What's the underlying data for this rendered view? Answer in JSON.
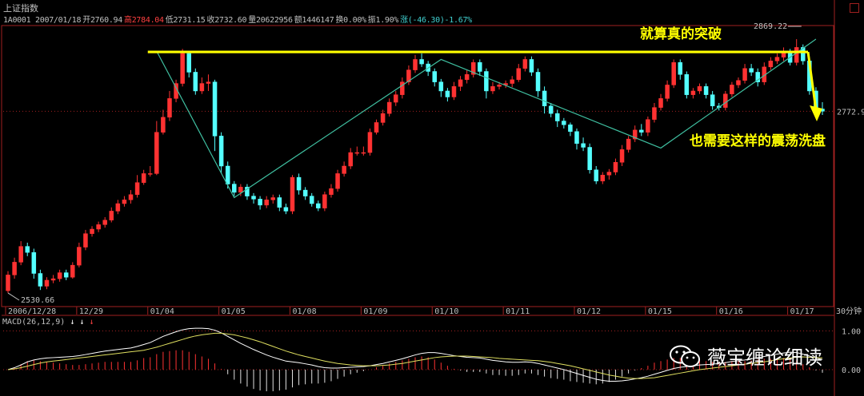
{
  "header": {
    "title": "上证指数",
    "quote": [
      {
        "text": "1A0001 2007/01/18",
        "color": "w"
      },
      {
        "text": "开2760.94",
        "color": "w"
      },
      {
        "text": "高2784.04",
        "color": "r"
      },
      {
        "text": "低2731.15",
        "color": "w"
      },
      {
        "text": "收2732.60",
        "color": "w"
      },
      {
        "text": "量20622956",
        "color": "w"
      },
      {
        "text": "额1446147",
        "color": "w"
      },
      {
        "text": "换0.00%",
        "color": "w"
      },
      {
        "text": "振1.90%",
        "color": "w"
      },
      {
        "text": "涨(-46.30)-1.67%",
        "color": "g"
      }
    ]
  },
  "annotations": {
    "breakout": "就算真的突破",
    "shakeout": "也需要这样的震荡洗盘"
  },
  "macd": {
    "label": "MACD(26,12,9)"
  },
  "watermark": {
    "text": "薇宝缠论细读"
  },
  "chart_data": {
    "type": "candlestick",
    "price": {
      "ylim": [
        2515,
        2885
      ],
      "high_label": "2869.22",
      "low_label": "2530.66",
      "last_label": "2772.9",
      "resistance_level": 2852,
      "period_label": "30分钟"
    },
    "x_labels": [
      "2006/12/28",
      "12/29",
      "01/04",
      "01/05",
      "01/08",
      "01/09",
      "01/10",
      "01/11",
      "01/12",
      "01/15",
      "01/16",
      "01/17"
    ],
    "x_label_index": [
      0,
      11,
      22,
      33,
      44,
      55,
      66,
      77,
      88,
      99,
      110,
      121
    ],
    "candles": [
      [
        2534,
        2555,
        2531,
        2560
      ],
      [
        2555,
        2572,
        2550,
        2578
      ],
      [
        2572,
        2593,
        2568,
        2600
      ],
      [
        2593,
        2585,
        2580,
        2598
      ],
      [
        2585,
        2557,
        2550,
        2590
      ],
      [
        2557,
        2540,
        2535,
        2562
      ],
      [
        2540,
        2548,
        2536,
        2552
      ],
      [
        2548,
        2550,
        2544,
        2555
      ],
      [
        2550,
        2558,
        2546,
        2562
      ],
      [
        2558,
        2552,
        2548,
        2562
      ],
      [
        2552,
        2568,
        2550,
        2572
      ],
      [
        2568,
        2592,
        2565,
        2598
      ],
      [
        2592,
        2610,
        2588,
        2615
      ],
      [
        2610,
        2616,
        2606,
        2620
      ],
      [
        2616,
        2622,
        2612,
        2626
      ],
      [
        2622,
        2628,
        2618,
        2632
      ],
      [
        2628,
        2640,
        2625,
        2645
      ],
      [
        2640,
        2650,
        2636,
        2655
      ],
      [
        2650,
        2655,
        2646,
        2660
      ],
      [
        2655,
        2662,
        2650,
        2668
      ],
      [
        2662,
        2678,
        2658,
        2688
      ],
      [
        2678,
        2690,
        2675,
        2695
      ],
      [
        2690,
        2690,
        2686,
        2700
      ],
      [
        2690,
        2745,
        2688,
        2760
      ],
      [
        2745,
        2765,
        2742,
        2775
      ],
      [
        2765,
        2790,
        2760,
        2800
      ],
      [
        2790,
        2810,
        2785,
        2815
      ],
      [
        2810,
        2850,
        2806,
        2856
      ],
      [
        2850,
        2825,
        2818,
        2852
      ],
      [
        2825,
        2800,
        2795,
        2830
      ],
      [
        2800,
        2810,
        2796,
        2818
      ],
      [
        2810,
        2812,
        2800,
        2822
      ],
      [
        2812,
        2740,
        2720,
        2815
      ],
      [
        2740,
        2700,
        2690,
        2745
      ],
      [
        2700,
        2676,
        2670,
        2706
      ],
      [
        2676,
        2665,
        2660,
        2680
      ],
      [
        2665,
        2672,
        2660,
        2676
      ],
      [
        2672,
        2660,
        2655,
        2676
      ],
      [
        2660,
        2656,
        2650,
        2664
      ],
      [
        2656,
        2648,
        2642,
        2660
      ],
      [
        2648,
        2655,
        2644,
        2660
      ],
      [
        2655,
        2658,
        2650,
        2662
      ],
      [
        2658,
        2645,
        2640,
        2662
      ],
      [
        2645,
        2640,
        2636,
        2650
      ],
      [
        2640,
        2685,
        2636,
        2688
      ],
      [
        2685,
        2668,
        2662,
        2690
      ],
      [
        2668,
        2660,
        2655,
        2672
      ],
      [
        2660,
        2650,
        2646,
        2664
      ],
      [
        2650,
        2644,
        2640,
        2654
      ],
      [
        2644,
        2662,
        2640,
        2666
      ],
      [
        2662,
        2670,
        2658,
        2676
      ],
      [
        2670,
        2690,
        2666,
        2695
      ],
      [
        2690,
        2700,
        2686,
        2706
      ],
      [
        2700,
        2718,
        2696,
        2724
      ],
      [
        2718,
        2718,
        2714,
        2726
      ],
      [
        2718,
        2718,
        2714,
        2726
      ],
      [
        2718,
        2745,
        2714,
        2750
      ],
      [
        2745,
        2758,
        2742,
        2762
      ],
      [
        2758,
        2770,
        2754,
        2775
      ],
      [
        2770,
        2785,
        2766,
        2790
      ],
      [
        2785,
        2795,
        2780,
        2800
      ],
      [
        2795,
        2812,
        2790,
        2818
      ],
      [
        2812,
        2828,
        2808,
        2834
      ],
      [
        2828,
        2842,
        2824,
        2848
      ],
      [
        2842,
        2836,
        2832,
        2850
      ],
      [
        2836,
        2826,
        2820,
        2840
      ],
      [
        2826,
        2812,
        2806,
        2830
      ],
      [
        2812,
        2800,
        2792,
        2816
      ],
      [
        2800,
        2792,
        2786,
        2804
      ],
      [
        2792,
        2806,
        2788,
        2812
      ],
      [
        2806,
        2815,
        2800,
        2820
      ],
      [
        2815,
        2822,
        2810,
        2828
      ],
      [
        2822,
        2838,
        2818,
        2842
      ],
      [
        2838,
        2826,
        2820,
        2842
      ],
      [
        2826,
        2800,
        2790,
        2830
      ],
      [
        2800,
        2806,
        2796,
        2812
      ],
      [
        2806,
        2808,
        2802,
        2812
      ],
      [
        2808,
        2810,
        2804,
        2814
      ],
      [
        2810,
        2815,
        2805,
        2820
      ],
      [
        2815,
        2830,
        2812,
        2836
      ],
      [
        2830,
        2842,
        2826,
        2846
      ],
      [
        2842,
        2825,
        2820,
        2846
      ],
      [
        2825,
        2800,
        2792,
        2830
      ],
      [
        2800,
        2780,
        2770,
        2806
      ],
      [
        2780,
        2770,
        2765,
        2784
      ],
      [
        2770,
        2760,
        2752,
        2775
      ],
      [
        2760,
        2755,
        2750,
        2764
      ],
      [
        2755,
        2746,
        2740,
        2758
      ],
      [
        2746,
        2730,
        2722,
        2750
      ],
      [
        2730,
        2725,
        2720,
        2738
      ],
      [
        2725,
        2695,
        2690,
        2730
      ],
      [
        2695,
        2680,
        2676,
        2700
      ],
      [
        2680,
        2688,
        2676,
        2692
      ],
      [
        2688,
        2692,
        2682,
        2696
      ],
      [
        2692,
        2705,
        2688,
        2710
      ],
      [
        2705,
        2722,
        2700,
        2728
      ],
      [
        2722,
        2736,
        2718,
        2740
      ],
      [
        2736,
        2748,
        2732,
        2754
      ],
      [
        2748,
        2745,
        2740,
        2756
      ],
      [
        2745,
        2762,
        2740,
        2766
      ],
      [
        2762,
        2778,
        2758,
        2784
      ],
      [
        2778,
        2790,
        2774,
        2796
      ],
      [
        2790,
        2808,
        2786,
        2814
      ],
      [
        2808,
        2838,
        2804,
        2842
      ],
      [
        2838,
        2822,
        2815,
        2842
      ],
      [
        2822,
        2795,
        2790,
        2826
      ],
      [
        2795,
        2800,
        2790,
        2804
      ],
      [
        2800,
        2806,
        2796,
        2810
      ],
      [
        2806,
        2795,
        2790,
        2810
      ],
      [
        2795,
        2780,
        2775,
        2800
      ],
      [
        2780,
        2778,
        2774,
        2784
      ],
      [
        2778,
        2796,
        2774,
        2800
      ],
      [
        2796,
        2808,
        2792,
        2812
      ],
      [
        2808,
        2814,
        2804,
        2818
      ],
      [
        2814,
        2830,
        2810,
        2836
      ],
      [
        2830,
        2825,
        2820,
        2836
      ],
      [
        2825,
        2812,
        2806,
        2830
      ],
      [
        2812,
        2832,
        2808,
        2838
      ],
      [
        2832,
        2840,
        2828,
        2845
      ],
      [
        2840,
        2845,
        2836,
        2850
      ],
      [
        2845,
        2852,
        2840,
        2858
      ],
      [
        2852,
        2838,
        2834,
        2856
      ],
      [
        2838,
        2858,
        2834,
        2869
      ],
      [
        2858,
        2840,
        2835,
        2862
      ],
      [
        2840,
        2800,
        2795,
        2845
      ],
      [
        2800,
        2776,
        2770,
        2805
      ],
      [
        2776,
        2773,
        2768,
        2785
      ]
    ],
    "zigzag": [
      [
        23,
        2853
      ],
      [
        35,
        2658
      ],
      [
        67,
        2842
      ],
      [
        101,
        2724
      ],
      [
        125,
        2869
      ]
    ],
    "macd_ylim": [
      -0.6,
      1.3
    ],
    "macd_ticks": [
      "1.00",
      "0.00"
    ],
    "dif": [
      0.0,
      0.05,
      0.12,
      0.2,
      0.25,
      0.28,
      0.3,
      0.31,
      0.32,
      0.33,
      0.34,
      0.36,
      0.39,
      0.42,
      0.45,
      0.48,
      0.5,
      0.52,
      0.54,
      0.56,
      0.6,
      0.65,
      0.7,
      0.78,
      0.86,
      0.92,
      0.98,
      1.03,
      1.06,
      1.07,
      1.07,
      1.06,
      1.02,
      0.95,
      0.86,
      0.77,
      0.68,
      0.6,
      0.52,
      0.45,
      0.38,
      0.32,
      0.27,
      0.22,
      0.2,
      0.18,
      0.15,
      0.12,
      0.08,
      0.05,
      0.04,
      0.04,
      0.05,
      0.06,
      0.07,
      0.08,
      0.1,
      0.13,
      0.16,
      0.2,
      0.24,
      0.28,
      0.33,
      0.38,
      0.42,
      0.44,
      0.44,
      0.42,
      0.39,
      0.36,
      0.34,
      0.32,
      0.31,
      0.3,
      0.27,
      0.24,
      0.22,
      0.2,
      0.19,
      0.19,
      0.2,
      0.19,
      0.16,
      0.12,
      0.08,
      0.04,
      0.0,
      -0.05,
      -0.1,
      -0.15,
      -0.2,
      -0.25,
      -0.28,
      -0.3,
      -0.3,
      -0.29,
      -0.27,
      -0.24,
      -0.21,
      -0.17,
      -0.12,
      -0.07,
      -0.02,
      0.03,
      0.06,
      0.08,
      0.1,
      0.12,
      0.13,
      0.14,
      0.16,
      0.18,
      0.21,
      0.23,
      0.25,
      0.28,
      0.31,
      0.34,
      0.37,
      0.4,
      0.43,
      0.45,
      0.44,
      0.4,
      0.35,
      0.3,
      0.26
    ],
    "dea": [
      0.0,
      0.02,
      0.05,
      0.09,
      0.13,
      0.17,
      0.2,
      0.22,
      0.24,
      0.26,
      0.28,
      0.3,
      0.32,
      0.34,
      0.36,
      0.38,
      0.4,
      0.42,
      0.44,
      0.46,
      0.48,
      0.5,
      0.54,
      0.58,
      0.63,
      0.68,
      0.73,
      0.78,
      0.83,
      0.87,
      0.9,
      0.92,
      0.94,
      0.94,
      0.92,
      0.9,
      0.86,
      0.82,
      0.77,
      0.72,
      0.66,
      0.6,
      0.54,
      0.48,
      0.43,
      0.38,
      0.34,
      0.3,
      0.26,
      0.22,
      0.19,
      0.16,
      0.14,
      0.12,
      0.11,
      0.1,
      0.1,
      0.1,
      0.11,
      0.12,
      0.14,
      0.16,
      0.19,
      0.22,
      0.25,
      0.28,
      0.31,
      0.33,
      0.34,
      0.35,
      0.35,
      0.35,
      0.34,
      0.33,
      0.32,
      0.31,
      0.29,
      0.28,
      0.27,
      0.26,
      0.25,
      0.24,
      0.23,
      0.21,
      0.19,
      0.16,
      0.13,
      0.1,
      0.06,
      0.02,
      -0.02,
      -0.06,
      -0.1,
      -0.14,
      -0.17,
      -0.2,
      -0.22,
      -0.23,
      -0.23,
      -0.22,
      -0.21,
      -0.18,
      -0.15,
      -0.12,
      -0.09,
      -0.06,
      -0.03,
      0.0,
      0.02,
      0.04,
      0.06,
      0.08,
      0.1,
      0.12,
      0.14,
      0.16,
      0.18,
      0.2,
      0.23,
      0.26,
      0.28,
      0.3,
      0.32,
      0.33,
      0.32,
      0.31,
      0.3
    ]
  }
}
